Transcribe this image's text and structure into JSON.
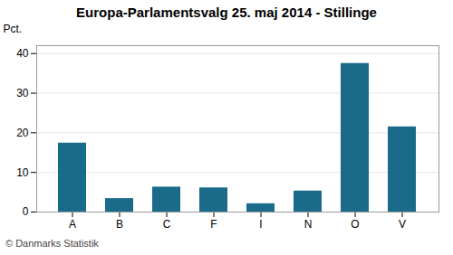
{
  "chart_data": {
    "type": "bar",
    "title": "Europa-Parlamentsvalg 25. maj 2014 - Stillinge",
    "categories": [
      "A",
      "B",
      "C",
      "F",
      "I",
      "N",
      "O",
      "V"
    ],
    "values": [
      17.4,
      3.4,
      6.3,
      6.1,
      2.1,
      5.3,
      37.5,
      21.5
    ],
    "color": "#1a6b8a",
    "ylabel": "Pct.",
    "ylim": [
      0,
      42
    ],
    "yticks": [
      0,
      10,
      20,
      30,
      40
    ],
    "grid": true,
    "caption": "© Danmarks Statistik"
  }
}
